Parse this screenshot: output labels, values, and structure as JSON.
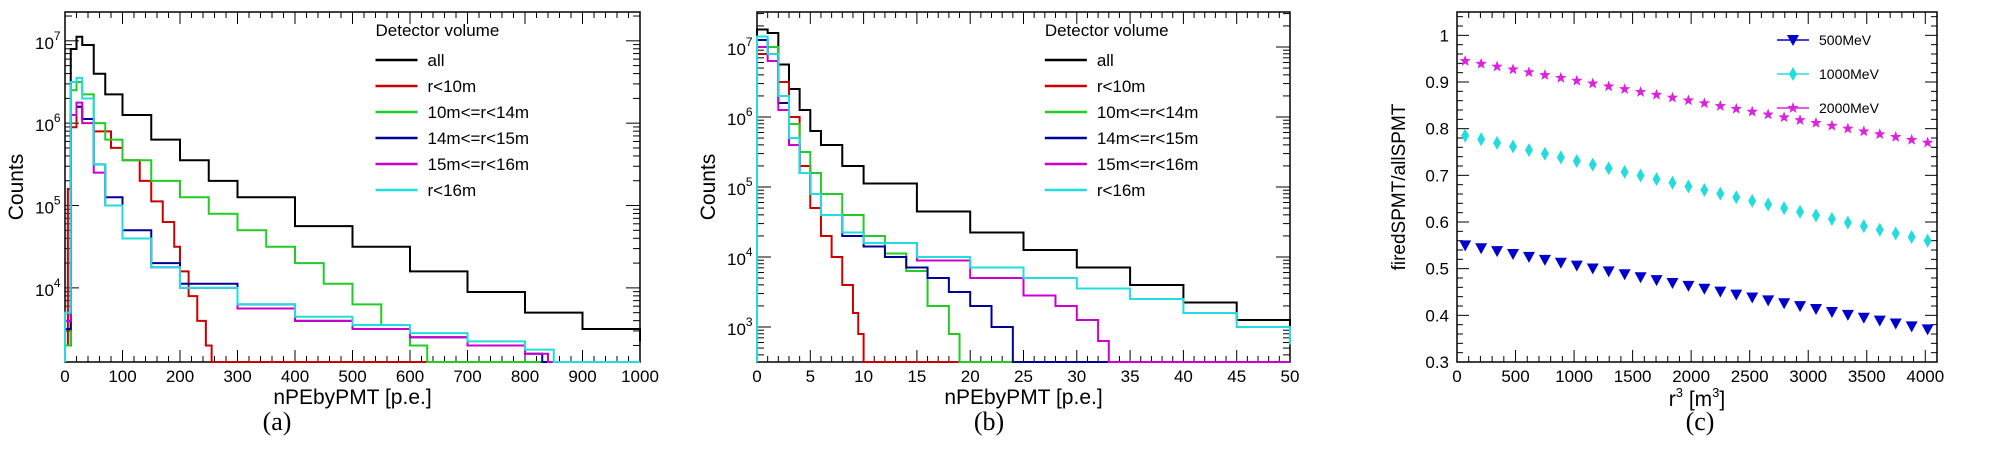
{
  "captions": [
    "(a)",
    "(b)",
    "(c)"
  ],
  "chart_data": [
    {
      "type": "line",
      "xlabel": "nPEbyPMT [p.e.]",
      "ylabel": "Counts",
      "xlim": [
        0,
        1000
      ],
      "ylim_log10": [
        3.1,
        7.35
      ],
      "log_y": true,
      "x_ticks": [
        "0",
        "100",
        "200",
        "300",
        "400",
        "500",
        "600",
        "700",
        "800",
        "900",
        "1000"
      ],
      "y_ticks": [
        {
          "base": "10",
          "exp": "4",
          "v": 4
        },
        {
          "base": "10",
          "exp": "5",
          "v": 5
        },
        {
          "base": "10",
          "exp": "6",
          "v": 6
        },
        {
          "base": "10",
          "exp": "7",
          "v": 7
        }
      ],
      "legend_title": "Detector volume",
      "legend_position": "top-right",
      "series": [
        {
          "name": "all",
          "color": "#000000",
          "x": [
            0,
            10,
            20,
            30,
            50,
            70,
            100,
            150,
            200,
            250,
            300,
            400,
            500,
            600,
            700,
            800,
            900,
            1000
          ],
          "y": [
            3.3,
            6.9,
            7.05,
            6.95,
            6.6,
            6.35,
            6.1,
            5.8,
            5.55,
            5.3,
            5.1,
            4.75,
            4.5,
            4.2,
            3.95,
            3.7,
            3.5,
            3.35
          ]
        },
        {
          "name": "r<10m",
          "color": "#cc0000",
          "x": [
            0,
            5,
            10,
            20,
            30,
            50,
            80,
            100,
            130,
            150,
            170,
            190,
            200,
            215,
            230,
            245,
            255,
            1000
          ],
          "y": [
            3.3,
            5.2,
            5.95,
            6.2,
            6.05,
            5.9,
            5.7,
            5.55,
            5.3,
            5.05,
            4.8,
            4.5,
            4.2,
            3.9,
            3.6,
            3.3,
            3.1,
            3.1
          ]
        },
        {
          "name": "10m<=r<14m",
          "color": "#22cc22",
          "x": [
            0,
            10,
            20,
            30,
            50,
            70,
            100,
            150,
            200,
            250,
            300,
            350,
            400,
            450,
            500,
            550,
            600,
            630,
            1000
          ],
          "y": [
            3.3,
            6.4,
            6.5,
            6.35,
            6.0,
            5.8,
            5.55,
            5.3,
            5.1,
            4.9,
            4.7,
            4.5,
            4.3,
            4.05,
            3.8,
            3.55,
            3.3,
            3.1,
            3.1
          ]
        },
        {
          "name": "14m<=r<15m",
          "color": "#000099",
          "x": [
            0,
            10,
            20,
            30,
            50,
            70,
            100,
            150,
            200,
            300,
            400,
            500,
            600,
            700,
            800,
            830,
            1000
          ],
          "y": [
            3.5,
            6.1,
            6.2,
            6.05,
            5.5,
            5.1,
            4.7,
            4.3,
            4.05,
            3.8,
            3.6,
            3.5,
            3.4,
            3.3,
            3.2,
            3.1,
            3.1
          ]
        },
        {
          "name": "15m<=r<16m",
          "color": "#cc00cc",
          "x": [
            0,
            10,
            20,
            30,
            50,
            70,
            100,
            150,
            200,
            300,
            400,
            500,
            600,
            700,
            800,
            840,
            1000
          ],
          "y": [
            3.6,
            6.1,
            6.25,
            6.0,
            5.4,
            5.0,
            4.6,
            4.25,
            4.0,
            3.75,
            3.6,
            3.5,
            3.4,
            3.3,
            3.2,
            3.1,
            3.1
          ]
        },
        {
          "name": "r<16m",
          "color": "#22dddd",
          "x": [
            0,
            10,
            20,
            30,
            50,
            70,
            100,
            150,
            200,
            300,
            400,
            500,
            600,
            700,
            800,
            850,
            1000
          ],
          "y": [
            3.7,
            6.5,
            6.55,
            6.3,
            5.5,
            5.0,
            4.6,
            4.25,
            4.0,
            3.8,
            3.65,
            3.55,
            3.45,
            3.35,
            3.25,
            3.1,
            3.1
          ]
        }
      ]
    },
    {
      "type": "line",
      "xlabel": "nPEbyPMT [p.e.]",
      "ylabel": "Counts",
      "xlim": [
        0,
        50
      ],
      "ylim_log10": [
        2.5,
        7.5
      ],
      "log_y": true,
      "x_ticks": [
        "0",
        "5",
        "10",
        "15",
        "20",
        "25",
        "30",
        "35",
        "40",
        "45",
        "50"
      ],
      "y_ticks": [
        {
          "base": "10",
          "exp": "3",
          "v": 3
        },
        {
          "base": "10",
          "exp": "4",
          "v": 4
        },
        {
          "base": "10",
          "exp": "5",
          "v": 5
        },
        {
          "base": "10",
          "exp": "6",
          "v": 6
        },
        {
          "base": "10",
          "exp": "7",
          "v": 7
        }
      ],
      "legend_title": "Detector volume",
      "legend_position": "top-right",
      "series": [
        {
          "name": "all",
          "color": "#000000",
          "x": [
            0,
            1,
            2,
            3,
            4,
            5,
            6,
            8,
            10,
            15,
            20,
            25,
            30,
            35,
            40,
            45,
            50
          ],
          "y": [
            7.25,
            7.2,
            6.75,
            6.4,
            6.1,
            5.8,
            5.6,
            5.3,
            5.05,
            4.65,
            4.35,
            4.1,
            3.85,
            3.6,
            3.35,
            3.1,
            2.8
          ]
        },
        {
          "name": "r<10m",
          "color": "#cc0000",
          "x": [
            0,
            1,
            2,
            3,
            4,
            5,
            6,
            7,
            8,
            9,
            9.5,
            10,
            50
          ],
          "y": [
            6.9,
            7.0,
            6.5,
            6.0,
            5.3,
            4.7,
            4.3,
            4.0,
            3.6,
            3.2,
            2.9,
            2.5,
            2.5
          ]
        },
        {
          "name": "10m<=r<14m",
          "color": "#22cc22",
          "x": [
            0,
            1,
            2,
            3,
            4,
            5,
            6,
            8,
            10,
            12,
            14,
            16,
            18,
            19,
            50
          ],
          "y": [
            7.1,
            7.0,
            6.3,
            5.9,
            5.5,
            5.2,
            4.9,
            4.6,
            4.3,
            4.05,
            3.8,
            3.3,
            2.9,
            2.5,
            2.5
          ]
        },
        {
          "name": "14m<=r<15m",
          "color": "#000099",
          "x": [
            0,
            1,
            2,
            3,
            4,
            5,
            6,
            8,
            10,
            12,
            14,
            16,
            18,
            20,
            22,
            24,
            50
          ],
          "y": [
            7.1,
            6.9,
            6.2,
            5.6,
            5.2,
            4.9,
            4.6,
            4.3,
            4.15,
            4.0,
            3.85,
            3.7,
            3.5,
            3.3,
            3.0,
            2.5,
            2.5
          ]
        },
        {
          "name": "15m<=r<16m",
          "color": "#cc00cc",
          "x": [
            0,
            1,
            2,
            3,
            4,
            5,
            6,
            8,
            10,
            15,
            20,
            25,
            28,
            30,
            32,
            33,
            50
          ],
          "y": [
            7.0,
            6.8,
            6.1,
            5.6,
            5.2,
            4.9,
            4.6,
            4.35,
            4.2,
            3.95,
            3.7,
            3.45,
            3.3,
            3.1,
            2.8,
            2.5,
            2.5
          ]
        },
        {
          "name": "r<16m",
          "color": "#22dddd",
          "x": [
            0,
            1,
            2,
            3,
            4,
            5,
            6,
            8,
            10,
            15,
            20,
            25,
            30,
            35,
            40,
            45,
            50
          ],
          "y": [
            7.15,
            6.9,
            6.3,
            5.7,
            5.2,
            4.9,
            4.6,
            4.35,
            4.2,
            4.0,
            3.85,
            3.7,
            3.55,
            3.4,
            3.2,
            3.0,
            2.75
          ]
        }
      ]
    },
    {
      "type": "scatter",
      "xlabel": "r3 [m3]",
      "ylabel": "firedSPMT/allSPMT",
      "xlim": [
        0,
        4100
      ],
      "ylim": [
        0.3,
        1.05
      ],
      "x_ticks": [
        "0",
        "500",
        "1000",
        "1500",
        "2000",
        "2500",
        "3000",
        "3500",
        "4000"
      ],
      "y_ticks": [
        "0.3",
        "0.4",
        "0.5",
        "0.6",
        "0.7",
        "0.8",
        "0.9",
        "1"
      ],
      "legend_position": "top-right",
      "series": [
        {
          "name": "500MeV",
          "color": "#0000cc",
          "marker": "triangle-down",
          "y_start": 0.55,
          "y_end": 0.37
        },
        {
          "name": "1000MeV",
          "color": "#22dddd",
          "marker": "diamond",
          "y_start": 0.785,
          "y_end": 0.56
        },
        {
          "name": "2000MeV",
          "color": "#dd22dd",
          "marker": "star",
          "y_start": 0.945,
          "y_end": 0.77
        }
      ],
      "n_points": 30
    }
  ]
}
